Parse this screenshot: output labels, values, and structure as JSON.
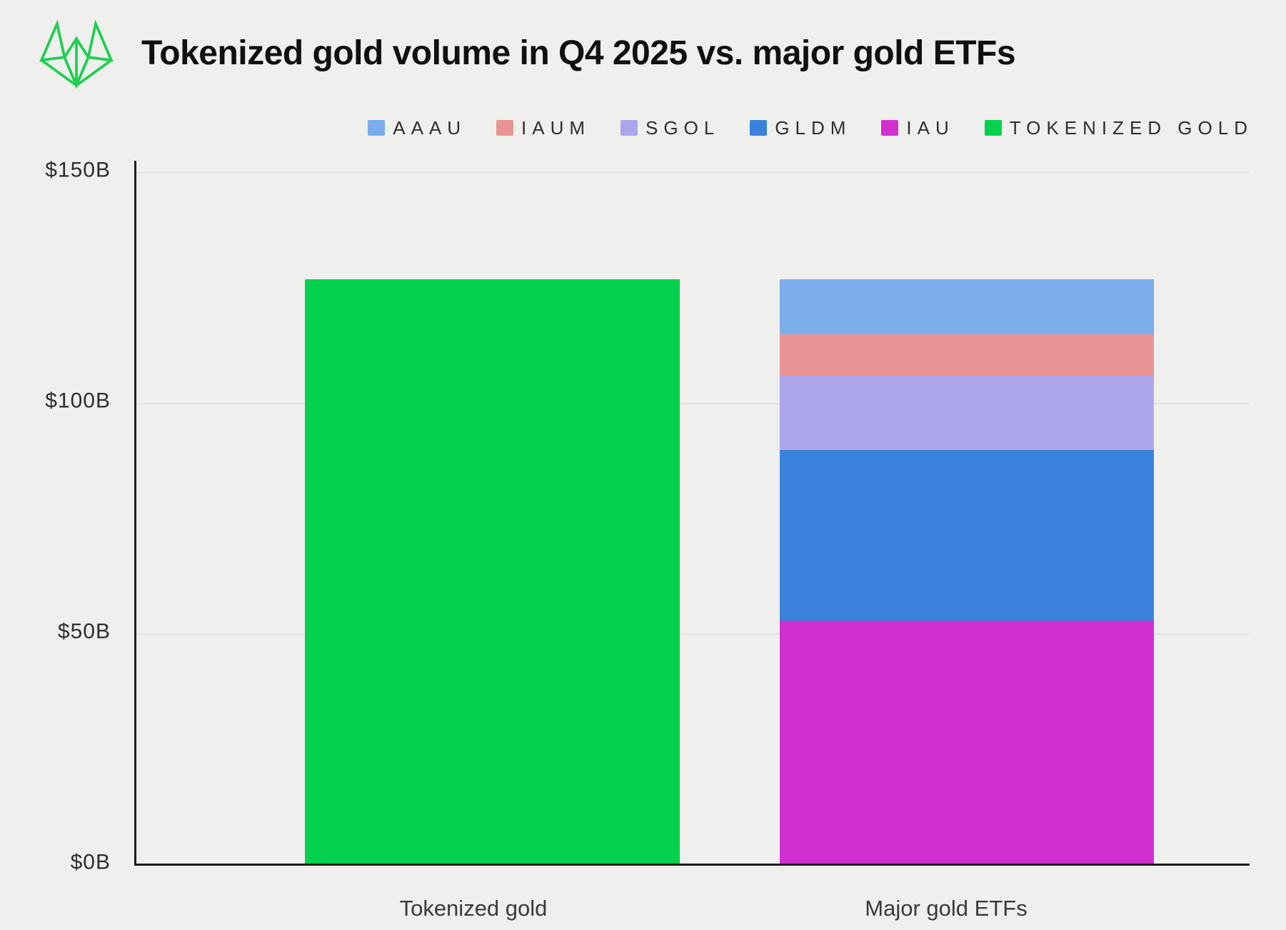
{
  "header": {
    "title": "Tokenized gold volume in Q4 2025 vs. major gold ETFs",
    "logo": "green-prism-crown-logo"
  },
  "colors": {
    "background": "#efefed",
    "logo_green": "#1fce50",
    "axis": "#1d1d1d",
    "gridline": "#e3e2e0",
    "title_text": "#101010",
    "tick_text": "#2d2d2d",
    "category_text": "#3a3a3a",
    "legend_text": "#2e2e2e",
    "tokenized_gold": "#05d14e",
    "aaau": "#7baded",
    "iaum": "#e99494",
    "sgol": "#aca5eb",
    "gldm": "#3a82dc",
    "iau": "#d32fd0"
  },
  "chart_data": {
    "type": "bar",
    "stacked": true,
    "title": "Tokenized gold volume in Q4 2025 vs. major gold ETFs",
    "unit": "USD billions",
    "categories": [
      "Tokenized gold",
      "Major gold ETFs"
    ],
    "totals": [
      127,
      127
    ],
    "legend_position": "top-right",
    "grid": true,
    "y_axis": {
      "min": 0,
      "max": 150,
      "ticks": [
        {
          "label": "$150B",
          "value": 150
        },
        {
          "label": "$100B",
          "value": 100
        },
        {
          "label": "$50B",
          "value": 50
        },
        {
          "label": "$0B",
          "value": 0
        }
      ]
    },
    "legend": [
      {
        "label": "AAAU",
        "color": "#7baded"
      },
      {
        "label": "IAUM",
        "color": "#e99494"
      },
      {
        "label": "SGOL",
        "color": "#aca5eb"
      },
      {
        "label": "GLDM",
        "color": "#3a82dc"
      },
      {
        "label": "IAU",
        "color": "#d32fd0"
      },
      {
        "label": "TOKENIZED GOLD",
        "color": "#05d14e"
      }
    ],
    "bars": [
      {
        "category": "Tokenized gold",
        "total": 127,
        "segments_bottom_to_top": [
          {
            "label": "TOKENIZED GOLD",
            "value": 127,
            "color": "#05d14e"
          }
        ]
      },
      {
        "category": "Major gold ETFs",
        "total": 127,
        "segments_bottom_to_top": [
          {
            "label": "IAU",
            "value": 53,
            "color": "#d32fd0"
          },
          {
            "label": "GLDM",
            "value": 37,
            "color": "#3a82dc"
          },
          {
            "label": "SGOL",
            "value": 16,
            "color": "#aca5eb"
          },
          {
            "label": "IAUM",
            "value": 9,
            "color": "#e99494"
          },
          {
            "label": "AAAU",
            "value": 12,
            "color": "#7baded"
          }
        ]
      }
    ]
  }
}
